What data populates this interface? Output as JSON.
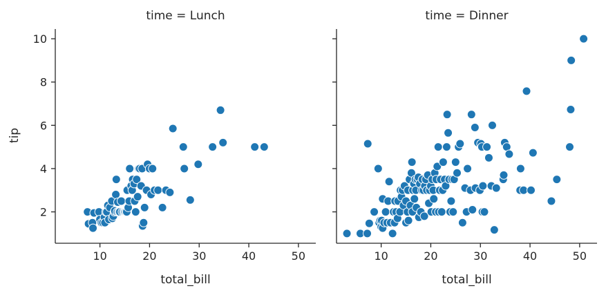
{
  "chart_data": {
    "type": "scatter",
    "x_variable": "total_bill",
    "y_variable": "tip",
    "xlim": [
      1,
      53.5
    ],
    "ylim": [
      0.55,
      10.45
    ],
    "x_ticks": [
      "10",
      "20",
      "30",
      "40",
      "50"
    ],
    "y_ticks": [
      "2",
      "4",
      "6",
      "8",
      "10"
    ],
    "point_color": "#1f77b4",
    "grid": false,
    "facets": [
      {
        "title": "time = Lunch",
        "xlabel": "total_bill",
        "ylabel": "tip",
        "points": [
          [
            7.5,
            2.0
          ],
          [
            7.7,
            1.45
          ],
          [
            8.5,
            1.5
          ],
          [
            8.6,
            1.25
          ],
          [
            8.8,
            1.95
          ],
          [
            9.8,
            2.0
          ],
          [
            10.0,
            1.65
          ],
          [
            10.3,
            1.5
          ],
          [
            10.6,
            1.5
          ],
          [
            10.9,
            1.75
          ],
          [
            11.0,
            1.5
          ],
          [
            11.2,
            2.0
          ],
          [
            11.4,
            2.0
          ],
          [
            11.6,
            2.3
          ],
          [
            11.8,
            1.65
          ],
          [
            12.0,
            2.2
          ],
          [
            12.4,
            2.5
          ],
          [
            12.5,
            1.7
          ],
          [
            12.7,
            1.8
          ],
          [
            12.9,
            2.0
          ],
          [
            13.0,
            2.05
          ],
          [
            13.2,
            2.8
          ],
          [
            13.3,
            3.5
          ],
          [
            13.5,
            2.0
          ],
          [
            13.6,
            2.45
          ],
          [
            13.8,
            2.0
          ],
          [
            14.0,
            2.0
          ],
          [
            14.3,
            2.5
          ],
          [
            14.5,
            2.0
          ],
          [
            14.8,
            2.0
          ],
          [
            15.0,
            2.0
          ],
          [
            15.2,
            2.0
          ],
          [
            15.4,
            2.0
          ],
          [
            15.5,
            3.0
          ],
          [
            15.7,
            2.2
          ],
          [
            15.9,
            2.5
          ],
          [
            16.0,
            4.0
          ],
          [
            16.3,
            3.2
          ],
          [
            16.5,
            3.0
          ],
          [
            16.6,
            3.5
          ],
          [
            16.9,
            3.3
          ],
          [
            17.0,
            2.5
          ],
          [
            17.2,
            2.0
          ],
          [
            17.4,
            3.5
          ],
          [
            17.6,
            2.7
          ],
          [
            17.8,
            4.0
          ],
          [
            18.0,
            4.0
          ],
          [
            18.3,
            3.2
          ],
          [
            18.5,
            4.0
          ],
          [
            18.6,
            1.35
          ],
          [
            18.8,
            1.5
          ],
          [
            19.0,
            2.2
          ],
          [
            19.4,
            3.0
          ],
          [
            19.6,
            4.2
          ],
          [
            20.0,
            4.0
          ],
          [
            20.3,
            2.8
          ],
          [
            20.6,
            4.0
          ],
          [
            21.0,
            3.0
          ],
          [
            21.7,
            3.0
          ],
          [
            22.6,
            2.2
          ],
          [
            23.3,
            3.0
          ],
          [
            24.1,
            2.9
          ],
          [
            24.7,
            5.85
          ],
          [
            26.8,
            5.0
          ],
          [
            27.0,
            4.0
          ],
          [
            28.2,
            2.55
          ],
          [
            29.8,
            4.2
          ],
          [
            32.7,
            5.0
          ],
          [
            34.3,
            6.7
          ],
          [
            34.8,
            5.2
          ],
          [
            41.2,
            5.0
          ],
          [
            43.1,
            5.0
          ]
        ]
      },
      {
        "title": "time = Dinner",
        "xlabel": "total_bill",
        "ylabel": "",
        "points": [
          [
            3.1,
            1.0
          ],
          [
            5.8,
            1.0
          ],
          [
            7.2,
            1.0
          ],
          [
            7.3,
            5.15
          ],
          [
            7.6,
            1.47
          ],
          [
            8.6,
            2.0
          ],
          [
            9.4,
            4.0
          ],
          [
            9.6,
            1.5
          ],
          [
            9.8,
            1.6
          ],
          [
            10.0,
            1.3
          ],
          [
            10.1,
            1.6
          ],
          [
            10.3,
            2.6
          ],
          [
            10.3,
            1.25
          ],
          [
            10.6,
            1.5
          ],
          [
            10.9,
            2.0
          ],
          [
            11.2,
            1.5
          ],
          [
            11.4,
            2.5
          ],
          [
            11.6,
            3.4
          ],
          [
            11.9,
            1.5
          ],
          [
            12.3,
            1.0
          ],
          [
            12.5,
            2.0
          ],
          [
            12.7,
            1.5
          ],
          [
            12.8,
            2.5
          ],
          [
            13.0,
            2.0
          ],
          [
            13.3,
            1.7
          ],
          [
            13.4,
            2.5
          ],
          [
            13.8,
            2.0
          ],
          [
            13.9,
            3.0
          ],
          [
            14.1,
            2.7
          ],
          [
            14.3,
            3.0
          ],
          [
            14.5,
            2.3
          ],
          [
            14.7,
            3.2
          ],
          [
            15.0,
            1.5
          ],
          [
            15.0,
            2.5
          ],
          [
            15.3,
            2.0
          ],
          [
            15.4,
            3.0
          ],
          [
            15.5,
            1.6
          ],
          [
            15.7,
            3.5
          ],
          [
            15.9,
            2.3
          ],
          [
            16.1,
            3.8
          ],
          [
            16.2,
            4.3
          ],
          [
            16.3,
            2.0
          ],
          [
            16.4,
            3.0
          ],
          [
            16.6,
            3.3
          ],
          [
            16.7,
            2.6
          ],
          [
            16.9,
            3.5
          ],
          [
            17.0,
            3.0
          ],
          [
            17.1,
            2.2
          ],
          [
            17.3,
            3.5
          ],
          [
            17.5,
            3.6
          ],
          [
            17.6,
            1.75
          ],
          [
            17.8,
            3.3
          ],
          [
            18.0,
            2.0
          ],
          [
            18.2,
            3.0
          ],
          [
            18.3,
            3.5
          ],
          [
            18.5,
            3.0
          ],
          [
            18.7,
            1.8
          ],
          [
            18.8,
            3.2
          ],
          [
            19.0,
            3.5
          ],
          [
            19.2,
            3.0
          ],
          [
            19.4,
            3.7
          ],
          [
            19.6,
            2.4
          ],
          [
            19.8,
            3.0
          ],
          [
            20.0,
            3.2
          ],
          [
            20.1,
            2.0
          ],
          [
            20.3,
            3.5
          ],
          [
            20.5,
            3.0
          ],
          [
            20.6,
            2.6
          ],
          [
            20.8,
            3.8
          ],
          [
            21.0,
            2.0
          ],
          [
            21.1,
            3.5
          ],
          [
            21.3,
            4.1
          ],
          [
            21.5,
            5.0
          ],
          [
            21.6,
            2.0
          ],
          [
            21.8,
            3.0
          ],
          [
            22.0,
            3.5
          ],
          [
            22.2,
            2.0
          ],
          [
            22.4,
            3.0
          ],
          [
            22.5,
            4.3
          ],
          [
            22.8,
            3.5
          ],
          [
            23.0,
            3.2
          ],
          [
            23.2,
            5.0
          ],
          [
            23.3,
            6.5
          ],
          [
            23.5,
            5.65
          ],
          [
            23.7,
            3.5
          ],
          [
            23.9,
            2.0
          ],
          [
            24.1,
            2.5
          ],
          [
            24.3,
            3.5
          ],
          [
            24.5,
            2.0
          ],
          [
            24.7,
            3.5
          ],
          [
            25.0,
            4.3
          ],
          [
            25.3,
            3.8
          ],
          [
            25.6,
            5.0
          ],
          [
            25.9,
            5.15
          ],
          [
            26.4,
            1.5
          ],
          [
            26.9,
            3.1
          ],
          [
            27.2,
            2.0
          ],
          [
            27.4,
            4.0
          ],
          [
            28.0,
            3.0
          ],
          [
            28.2,
            6.5
          ],
          [
            28.4,
            2.1
          ],
          [
            28.9,
            5.9
          ],
          [
            29.0,
            3.1
          ],
          [
            29.5,
            5.2
          ],
          [
            29.9,
            3.0
          ],
          [
            30.1,
            5.15
          ],
          [
            30.3,
            5.0
          ],
          [
            30.4,
            2.0
          ],
          [
            30.5,
            3.2
          ],
          [
            30.8,
            2.0
          ],
          [
            31.3,
            5.0
          ],
          [
            31.7,
            4.5
          ],
          [
            32.2,
            3.2
          ],
          [
            32.4,
            6.0
          ],
          [
            32.8,
            1.17
          ],
          [
            33.2,
            3.1
          ],
          [
            34.6,
            3.5
          ],
          [
            34.7,
            3.7
          ],
          [
            34.9,
            5.2
          ],
          [
            35.3,
            5.0
          ],
          [
            35.8,
            4.67
          ],
          [
            38.0,
            3.0
          ],
          [
            38.1,
            4.0
          ],
          [
            38.7,
            3.0
          ],
          [
            39.3,
            7.58
          ],
          [
            40.2,
            3.0
          ],
          [
            40.6,
            4.73
          ],
          [
            44.3,
            2.5
          ],
          [
            45.4,
            3.5
          ],
          [
            48.0,
            5.0
          ],
          [
            48.2,
            6.73
          ],
          [
            48.3,
            9.0
          ],
          [
            50.8,
            10.0
          ]
        ]
      }
    ]
  }
}
